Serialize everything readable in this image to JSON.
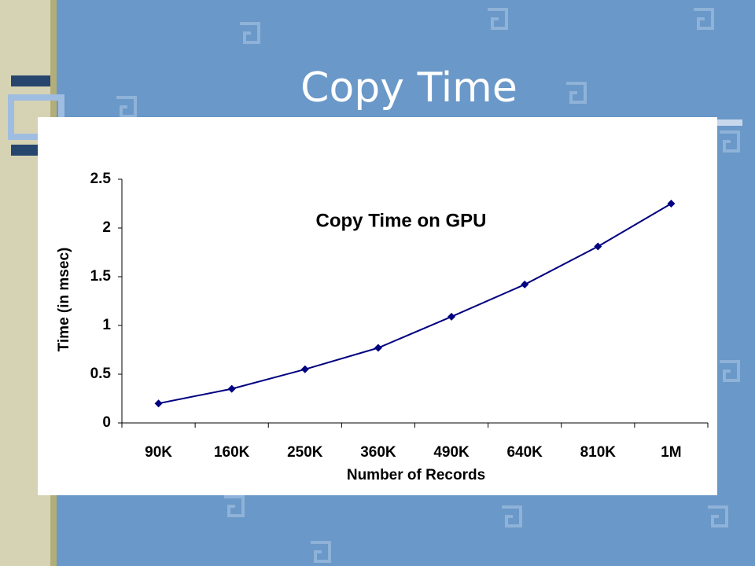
{
  "slide": {
    "title": "Copy Time"
  },
  "chart_data": {
    "type": "line",
    "title": "Copy Time on GPU",
    "x_label": "Number of Records",
    "y_label": "Time (in msec)",
    "categories": [
      "90K",
      "160K",
      "250K",
      "360K",
      "490K",
      "640K",
      "810K",
      "1M"
    ],
    "series": [
      {
        "name": "Copy Time",
        "color": "#000080",
        "values": [
          0.2,
          0.35,
          0.55,
          0.77,
          1.09,
          1.42,
          1.81,
          2.25
        ]
      }
    ],
    "ylim": [
      0,
      2.5
    ],
    "yticks": [
      0,
      0.5,
      1,
      1.5,
      2,
      2.5
    ],
    "grid": false
  }
}
